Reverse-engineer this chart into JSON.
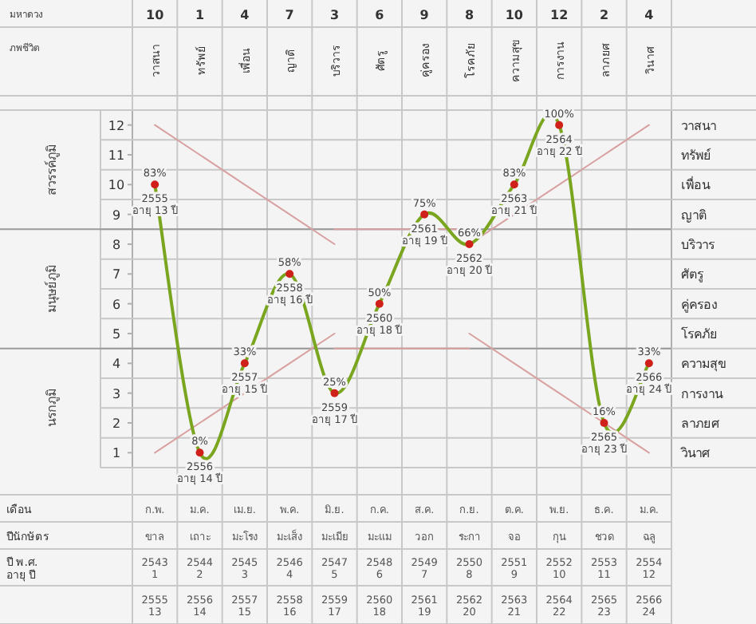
{
  "chart_data": {
    "type": "line",
    "categories": [
      "วาสนา",
      "ทรัพย์",
      "เพื่อน",
      "ญาติ",
      "บริวาร",
      "ศัตรู",
      "คู่ครอง",
      "โรคภัย",
      "ความสุข",
      "การงาน",
      "ลาภยศ",
      "วินาศ"
    ],
    "series": [
      {
        "color": "#d9a0a0",
        "line_style": "solid",
        "values": [
          12,
          11,
          10,
          9,
          8,
          null,
          null,
          5,
          4,
          3,
          2,
          1
        ]
      },
      {
        "color": "#d9a0a0",
        "line_style": "solid",
        "values": [
          1,
          2,
          3,
          4,
          5,
          null,
          null,
          8,
          9,
          10,
          11,
          12
        ]
      },
      {
        "color": "#d9a0a0",
        "line_style": "solid",
        "values": [
          null,
          null,
          null,
          null,
          8.5,
          8.5,
          8.5,
          8.5,
          null,
          null,
          null,
          null
        ]
      },
      {
        "color": "#d9a0a0",
        "line_style": "solid",
        "values": [
          null,
          null,
          null,
          null,
          4.5,
          4.5,
          4.5,
          4.5,
          null,
          null,
          null,
          null
        ]
      },
      {
        "color": "#7aa51f",
        "colors": [
          "#d0201a",
          "#d0201a",
          "#d0201a",
          "#d0201a",
          "#d0201a",
          "#d0201a",
          "#d0201a",
          "#d0201a",
          "#d0201a",
          "#d0201a",
          "#d0201a",
          "#d0201a"
        ],
        "marker": "circle",
        "line_style": "solid",
        "values": [
          10,
          1,
          4,
          7,
          3,
          6,
          9,
          8,
          10,
          12,
          2,
          4
        ],
        "value_labels": [
          "10",
          "1",
          "4",
          "7",
          "3",
          "6",
          "9",
          "8",
          "10",
          "12",
          "2",
          "4"
        ]
      }
    ],
    "ylim": [
      0.5,
      12.5
    ],
    "yticks": [
      1,
      2,
      3,
      4,
      5,
      6,
      7,
      8,
      9,
      10,
      11,
      12
    ],
    "ref_lines": [
      {
        "axis": "y",
        "value": 8.5,
        "color": "#9a9a9a"
      },
      {
        "axis": "y",
        "value": 4.5,
        "color": "#9a9a9a"
      }
    ],
    "grid": true,
    "annotations": [
      "มหาดวง",
      "ภพชีวิต",
      "สวรรค์ภูมิ",
      "มนุษย์ภูมิ",
      "นรกภูมิ",
      "วาสนา",
      "ทรัพย์",
      "เพื่อน",
      "ญาติ",
      "บริวาร",
      "ศัตรู",
      "คู่ครอง",
      "โรคภัย",
      "ความสุข",
      "การงาน",
      "ลาภยศ",
      "วินาศ",
      {
        "text": "83%",
        "x": "วาสนา",
        "y": 10
      },
      {
        "text": "2555",
        "x": "วาสนา",
        "y": 10
      },
      {
        "text": "อายุ 13 ปี",
        "x": "วาสนา",
        "y": 10
      },
      {
        "text": "8%",
        "x": "ทรัพย์",
        "y": 1
      },
      {
        "text": "2556",
        "x": "ทรัพย์",
        "y": 1
      },
      {
        "text": "อายุ 14 ปี",
        "x": "ทรัพย์",
        "y": 1
      },
      {
        "text": "33%",
        "x": "เพื่อน",
        "y": 4
      },
      {
        "text": "2557",
        "x": "เพื่อน",
        "y": 4
      },
      {
        "text": "อายุ 15 ปี",
        "x": "เพื่อน",
        "y": 4
      },
      {
        "text": "58%",
        "x": "ญาติ",
        "y": 7
      },
      {
        "text": "2558",
        "x": "ญาติ",
        "y": 7
      },
      {
        "text": "อายุ 16 ปี",
        "x": "ญาติ",
        "y": 7
      },
      {
        "text": "25%",
        "x": "บริวาร",
        "y": 3
      },
      {
        "text": "2559",
        "x": "บริวาร",
        "y": 3
      },
      {
        "text": "อายุ 17 ปี",
        "x": "บริวาร",
        "y": 3
      },
      {
        "text": "50%",
        "x": "ศัตรู",
        "y": 6
      },
      {
        "text": "2560",
        "x": "ศัตรู",
        "y": 6
      },
      {
        "text": "อายุ 18 ปี",
        "x": "ศัตรู",
        "y": 6
      },
      {
        "text": "75%",
        "x": "คู่ครอง",
        "y": 9
      },
      {
        "text": "2561",
        "x": "คู่ครอง",
        "y": 9
      },
      {
        "text": "อายุ 19 ปี",
        "x": "คู่ครอง",
        "y": 9
      },
      {
        "text": "66%",
        "x": "โรคภัย",
        "y": 8
      },
      {
        "text": "2562",
        "x": "โรคภัย",
        "y": 8
      },
      {
        "text": "อายุ 20 ปี",
        "x": "โรคภัย",
        "y": 8
      },
      {
        "text": "83%",
        "x": "ความสุข",
        "y": 10
      },
      {
        "text": "2563",
        "x": "ความสุข",
        "y": 10
      },
      {
        "text": "อายุ 21 ปี",
        "x": "ความสุข",
        "y": 10
      },
      {
        "text": "100%",
        "x": "การงาน",
        "y": 12
      },
      {
        "text": "2564",
        "x": "การงาน",
        "y": 12
      },
      {
        "text": "อายุ 22 ปี",
        "x": "การงาน",
        "y": 12
      },
      {
        "text": "16%",
        "x": "ลาภยศ",
        "y": 2
      },
      {
        "text": "2565",
        "x": "ลาภยศ",
        "y": 2
      },
      {
        "text": "อายุ 23 ปี",
        "x": "ลาภยศ",
        "y": 2
      },
      {
        "text": "33%",
        "x": "วินาศ",
        "y": 4
      },
      {
        "text": "2566",
        "x": "วินาศ",
        "y": 4
      },
      {
        "text": "อายุ 24 ปี",
        "x": "วินาศ",
        "y": 4
      },
      "เดือน",
      "ก.พ.",
      "ม.ค.",
      "เม.ย.",
      "พ.ค.",
      "มิ.ย.",
      "ก.ค.",
      "ส.ค.",
      "ก.ย.",
      "ต.ค.",
      "พ.ย.",
      "ธ.ค.",
      "ม.ค.",
      "ปีนักษัตร",
      "ขาล",
      "เถาะ",
      "มะโรง",
      "มะเส็ง",
      "มะเมีย",
      "มะแม",
      "วอก",
      "ระกา",
      "จอ",
      "กุน",
      "ชวด",
      "ฉลู",
      "ปี พ.ศ.\nอายุ ปี",
      "2543\n1",
      "2544\n2",
      "2545\n3",
      "2546\n4",
      "2547\n5",
      "2548\n6",
      "2549\n7",
      "2550\n8",
      "2551\n9",
      "2552\n10",
      "2553\n11",
      "2554\n12",
      "2555\n13",
      "2556\n14",
      "2557\n15",
      "2558\n16",
      "2559\n17",
      "2560\n18",
      "2561\n19",
      "2562\n20",
      "2563\n21",
      "2564\n22",
      "2565\n23",
      "2566\n24"
    ]
  }
}
